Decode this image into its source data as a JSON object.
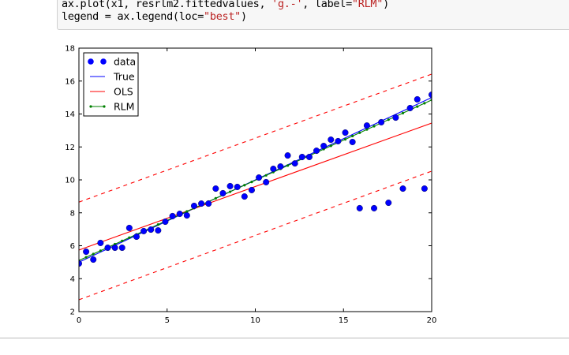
{
  "code": {
    "line1_pre": "ax.plot(x1, resrlm2.fittedvalues, ",
    "line1_str1": "'g.-'",
    "line1_mid": ", label=",
    "line1_str2": "\"RLM\"",
    "line1_post": ")",
    "line2_pre": "legend = ax.legend(loc=",
    "line2_str": "\"best\"",
    "line2_post": ")"
  },
  "chart_data": {
    "type": "scatter",
    "xlim": [
      0,
      20
    ],
    "ylim": [
      2,
      18
    ],
    "xticks": [
      0,
      5,
      10,
      15,
      20
    ],
    "yticks": [
      2,
      4,
      6,
      8,
      10,
      12,
      14,
      16,
      18
    ],
    "grid": false,
    "legend_placement": "upper-left",
    "colors": {
      "data": "#0000ff",
      "True": "#0000ff",
      "OLS": "#ff0000",
      "RLM": "#008000"
    },
    "series": [
      {
        "name": "data",
        "style": "points",
        "y": [
          4.92,
          5.64,
          5.16,
          6.17,
          5.88,
          5.88,
          5.88,
          7.08,
          6.55,
          6.89,
          6.98,
          6.93,
          7.46,
          7.8,
          7.94,
          7.84,
          8.42,
          8.56,
          8.56,
          9.47,
          9.19,
          9.62,
          9.57,
          8.99,
          9.38,
          10.14,
          9.86,
          10.67,
          10.81,
          11.48,
          11.0,
          11.39,
          11.39,
          11.77,
          12.06,
          12.44,
          12.35,
          12.87,
          12.3,
          8.28,
          13.3,
          8.28,
          13.5,
          8.61,
          13.78,
          9.47,
          14.36,
          14.89,
          9.47,
          15.17
        ]
      },
      {
        "name": "True",
        "style": "line",
        "y_at_xmin": 5.0,
        "y_at_xmax": 15.0
      },
      {
        "name": "OLS",
        "style": "line",
        "y_at_xmin": 5.74,
        "y_at_xmax": 13.45
      },
      {
        "style": "dashed",
        "color": "#ff0000",
        "y_at_xmin": 8.65,
        "y_at_xmax": 16.42
      },
      {
        "style": "dashed",
        "color": "#ff0000",
        "y_at_xmin": 2.72,
        "y_at_xmax": 10.53
      },
      {
        "name": "RLM",
        "style": "line-markers",
        "y_at_xmin": 5.1,
        "y_at_xmax": 14.85
      }
    ],
    "legend": [
      "data",
      "True",
      "OLS",
      "RLM"
    ]
  }
}
